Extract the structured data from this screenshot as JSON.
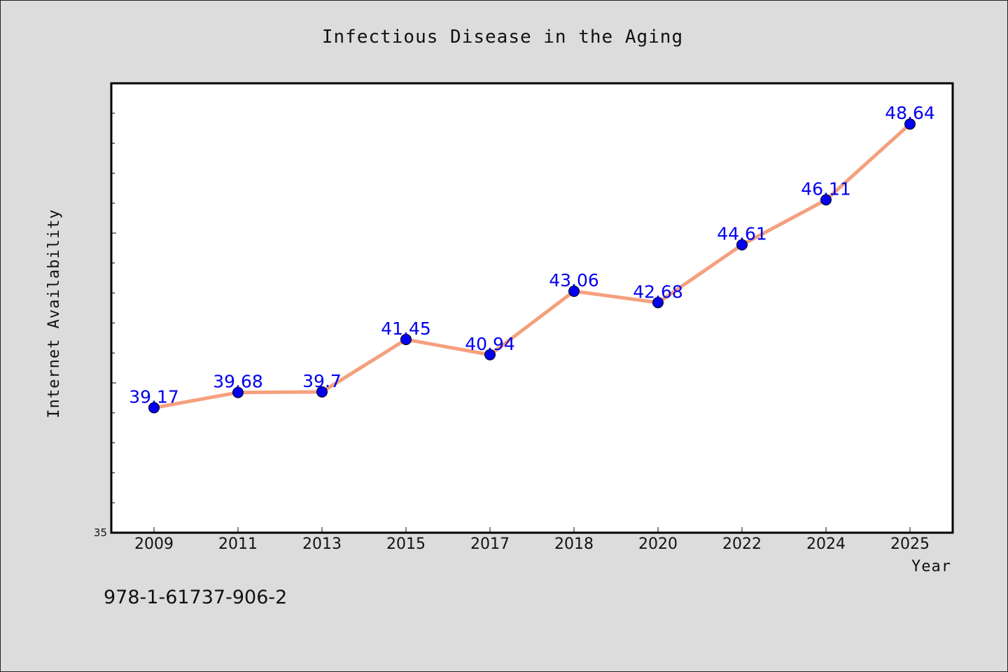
{
  "chart_data": {
    "type": "line",
    "title": "Infectious Disease in the Aging",
    "xlabel": "Year",
    "ylabel": "Internet Availability",
    "categories": [
      "2009",
      "2011",
      "2013",
      "2015",
      "2017",
      "2018",
      "2020",
      "2022",
      "2024",
      "2025"
    ],
    "series": [
      {
        "values": [
          39.17,
          39.68,
          39.7,
          41.45,
          40.94,
          43.06,
          42.68,
          44.61,
          46.11,
          48.64
        ],
        "data_labels": [
          "39.17",
          "39.68",
          "39.7",
          "41.45",
          "40.94",
          "43.06",
          "42.68",
          "44.61",
          "46.11",
          "48.64"
        ]
      }
    ],
    "ylim": [
      35,
      50
    ],
    "y_tick_labels": [
      "35"
    ],
    "grid": false,
    "legend": "none",
    "colors": {
      "line": "#f4a07e",
      "marker": "#0000ee",
      "data_label": "#0000ee",
      "plot_background": "#ffffff",
      "figure_background": "#dcdcdc"
    }
  },
  "footer": {
    "isbn": "978-1-61737-906-2"
  }
}
